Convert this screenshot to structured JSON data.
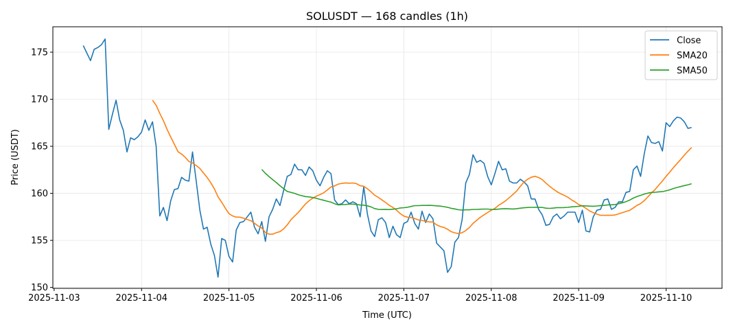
{
  "chart_data": {
    "type": "line",
    "title": "SOLUSDT — 168 candles (1h)",
    "xlabel": "Time (UTC)",
    "ylabel": "Price (USDT)",
    "x_start": "2025-11-03 08:00",
    "x_unit": "hours since 2025-11-03 00:00",
    "x_step_hours": 1,
    "xlim": [
      -0.35,
      183.35
    ],
    "ylim": [
      149.9,
      177.7
    ],
    "xticks": [
      {
        "label": "2025-11-03",
        "hour": 0
      },
      {
        "label": "2025-11-04",
        "hour": 24
      },
      {
        "label": "2025-11-05",
        "hour": 48
      },
      {
        "label": "2025-11-06",
        "hour": 72
      },
      {
        "label": "2025-11-07",
        "hour": 96
      },
      {
        "label": "2025-11-08",
        "hour": 120
      },
      {
        "label": "2025-11-09",
        "hour": 144
      },
      {
        "label": "2025-11-10",
        "hour": 168
      }
    ],
    "yticks": [
      150,
      155,
      160,
      165,
      170,
      175
    ],
    "grid": true,
    "legend_position": "top-right",
    "series": [
      {
        "name": "Close",
        "color": "#1f77b4",
        "values": [
          175.7,
          174.9,
          174.1,
          175.3,
          175.5,
          175.8,
          176.4,
          166.8,
          168.4,
          169.9,
          167.8,
          166.7,
          164.4,
          165.9,
          165.7,
          166.0,
          166.5,
          167.8,
          166.7,
          167.6,
          165.0,
          157.6,
          158.5,
          157.1,
          159.2,
          160.4,
          160.5,
          161.7,
          161.4,
          161.3,
          164.4,
          161.3,
          158.2,
          156.2,
          156.4,
          154.6,
          153.4,
          151.1,
          155.2,
          155.0,
          153.3,
          152.7,
          156.1,
          156.9,
          157.0,
          157.5,
          158.0,
          156.4,
          155.7,
          157.0,
          154.9,
          157.5,
          158.3,
          159.4,
          158.7,
          160.3,
          161.8,
          162.0,
          163.1,
          162.5,
          162.5,
          161.9,
          162.8,
          162.4,
          161.4,
          160.8,
          161.7,
          162.4,
          162.1,
          159.3,
          158.8,
          158.9,
          159.3,
          158.9,
          159.1,
          158.9,
          157.5,
          160.7,
          157.8,
          156.0,
          155.4,
          157.2,
          157.4,
          156.9,
          155.3,
          156.5,
          155.6,
          155.3,
          156.8,
          157.0,
          158.0,
          156.8,
          156.2,
          158.1,
          156.9,
          157.8,
          157.3,
          154.7,
          154.3,
          153.9,
          151.6,
          152.2,
          154.8,
          155.3,
          157.2,
          161.1,
          162.0,
          164.1,
          163.3,
          163.5,
          163.2,
          161.8,
          160.9,
          162.1,
          163.4,
          162.5,
          162.6,
          161.3,
          161.1,
          161.1,
          161.5,
          161.2,
          160.8,
          159.4,
          159.4,
          158.3,
          157.7,
          156.6,
          156.7,
          157.5,
          157.8,
          157.3,
          157.6,
          158.0,
          158.0,
          158.0,
          156.9,
          158.2,
          156.0,
          155.9,
          157.5,
          158.2,
          158.3,
          159.3,
          159.4,
          158.3,
          158.5,
          159.1,
          159.1,
          160.1,
          160.2,
          162.5,
          162.9,
          161.8,
          164.2,
          166.1,
          165.4,
          165.3,
          165.5,
          164.5,
          167.5,
          167.1,
          167.7,
          168.1,
          168.0,
          167.6,
          166.9,
          167.0
        ]
      },
      {
        "name": "SMA20",
        "color": "#ff7f0e",
        "window": 20
      },
      {
        "name": "SMA50",
        "color": "#2ca02c",
        "window": 50
      }
    ]
  }
}
